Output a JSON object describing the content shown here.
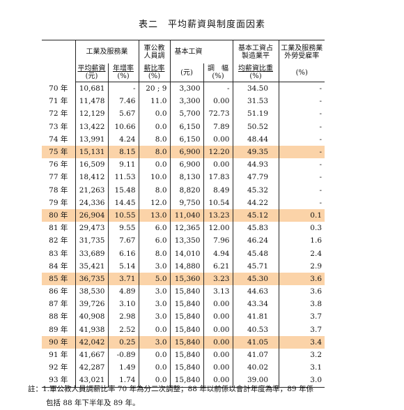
{
  "title": {
    "left": "表二",
    "right": "平均薪資與制度面因素"
  },
  "header": {
    "group_industry": "工業及服務業",
    "avg_wage": "平均薪資",
    "avg_wage_unit": "(元)",
    "growth": "年增率",
    "growth_unit": "(%)",
    "civil_line1": "軍公教",
    "civil_line2": "人員調",
    "civil_line3": "薪比率",
    "civil_unit": "(%)",
    "group_basic": "基本工資",
    "basic_unit": "(元)",
    "adjust": "調　幅",
    "adjust_unit": "(%)",
    "ratio_line1": "基本工資占",
    "ratio_line2": "製造業平",
    "ratio_line3": "均薪資比重",
    "ratio_unit": "(%)",
    "foreign_line1": "工業及服務業",
    "foreign_line2": "外勞受雇率",
    "foreign_unit": "(%)"
  },
  "rows": [
    {
      "year": "70 年",
      "avg": "10,681",
      "growth": "-",
      "civil": "20 ; 9",
      "basic": "3,300",
      "adj": "-",
      "ratio": "34.50",
      "foreign": "-",
      "hl": false
    },
    {
      "year": "71 年",
      "avg": "11,478",
      "growth": "7.46",
      "civil": "11.0",
      "basic": "3,300",
      "adj": "0.00",
      "ratio": "31.53",
      "foreign": "-",
      "hl": false
    },
    {
      "year": "72 年",
      "avg": "12,129",
      "growth": "5.67",
      "civil": "0.0",
      "basic": "5,700",
      "adj": "72.73",
      "ratio": "51.19",
      "foreign": "-",
      "hl": false
    },
    {
      "year": "73 年",
      "avg": "13,422",
      "growth": "10.66",
      "civil": "0.0",
      "basic": "6,150",
      "adj": "7.89",
      "ratio": "50.52",
      "foreign": "-",
      "hl": false
    },
    {
      "year": "74 年",
      "avg": "13,991",
      "growth": "4.24",
      "civil": "8.0",
      "basic": "6,150",
      "adj": "0.00",
      "ratio": "48.44",
      "foreign": "-",
      "hl": false
    },
    {
      "year": "75 年",
      "avg": "15,131",
      "growth": "8.15",
      "civil": "8.0",
      "basic": "6,900",
      "adj": "12.20",
      "ratio": "49.35",
      "foreign": "-",
      "hl": true
    },
    {
      "year": "76 年",
      "avg": "16,509",
      "growth": "9.11",
      "civil": "0.0",
      "basic": "6,900",
      "adj": "0.00",
      "ratio": "44.93",
      "foreign": "-",
      "hl": false
    },
    {
      "year": "77 年",
      "avg": "18,412",
      "growth": "11.53",
      "civil": "10.0",
      "basic": "8,130",
      "adj": "17.83",
      "ratio": "47.79",
      "foreign": "-",
      "hl": false
    },
    {
      "year": "78 年",
      "avg": "21,263",
      "growth": "15.48",
      "civil": "8.0",
      "basic": "8,820",
      "adj": "8.49",
      "ratio": "45.32",
      "foreign": "-",
      "hl": false
    },
    {
      "year": "79 年",
      "avg": "24,336",
      "growth": "14.45",
      "civil": "12.0",
      "basic": "9,750",
      "adj": "10.54",
      "ratio": "44.22",
      "foreign": "-",
      "hl": false
    },
    {
      "year": "80 年",
      "avg": "26,904",
      "growth": "10.55",
      "civil": "13.0",
      "basic": "11,040",
      "adj": "13.23",
      "ratio": "45.12",
      "foreign": "0.1",
      "hl": true
    },
    {
      "year": "81 年",
      "avg": "29,473",
      "growth": "9.55",
      "civil": "6.0",
      "basic": "12,365",
      "adj": "12.00",
      "ratio": "45.83",
      "foreign": "0.3",
      "hl": false
    },
    {
      "year": "82 年",
      "avg": "31,735",
      "growth": "7.67",
      "civil": "6.0",
      "basic": "13,350",
      "adj": "7.96",
      "ratio": "46.24",
      "foreign": "1.6",
      "hl": false
    },
    {
      "year": "83 年",
      "avg": "33,689",
      "growth": "6.16",
      "civil": "8.0",
      "basic": "14,010",
      "adj": "4.94",
      "ratio": "45.48",
      "foreign": "2.4",
      "hl": false
    },
    {
      "year": "84 年",
      "avg": "35,421",
      "growth": "5.14",
      "civil": "3.0",
      "basic": "14,880",
      "adj": "6.21",
      "ratio": "45.71",
      "foreign": "2.9",
      "hl": false
    },
    {
      "year": "85 年",
      "avg": "36,735",
      "growth": "3.71",
      "civil": "5.0",
      "basic": "15,360",
      "adj": "3.23",
      "ratio": "45.30",
      "foreign": "3.6",
      "hl": true
    },
    {
      "year": "86 年",
      "avg": "38,530",
      "growth": "4.89",
      "civil": "3.0",
      "basic": "15,840",
      "adj": "3.13",
      "ratio": "44.63",
      "foreign": "3.6",
      "hl": false
    },
    {
      "year": "87 年",
      "avg": "39,726",
      "growth": "3.10",
      "civil": "3.0",
      "basic": "15,840",
      "adj": "0.00",
      "ratio": "43.34",
      "foreign": "3.8",
      "hl": false
    },
    {
      "year": "88 年",
      "avg": "40,908",
      "growth": "2.98",
      "civil": "3.0",
      "basic": "15,840",
      "adj": "0.00",
      "ratio": "41.81",
      "foreign": "3.7",
      "hl": false
    },
    {
      "year": "89 年",
      "avg": "41,938",
      "growth": "2.52",
      "civil": "0.0",
      "basic": "15,840",
      "adj": "0.00",
      "ratio": "40.53",
      "foreign": "3.7",
      "hl": false
    },
    {
      "year": "90 年",
      "avg": "42,042",
      "growth": "0.25",
      "civil": "3.0",
      "basic": "15,840",
      "adj": "0.00",
      "ratio": "41.05",
      "foreign": "3.4",
      "hl": true
    },
    {
      "year": "91 年",
      "avg": "41,667",
      "growth": "-0.89",
      "civil": "0.0",
      "basic": "15,840",
      "adj": "0.00",
      "ratio": "41.07",
      "foreign": "3.2",
      "hl": false
    },
    {
      "year": "92 年",
      "avg": "42,287",
      "growth": "1.49",
      "civil": "0.0",
      "basic": "15,840",
      "adj": "0.00",
      "ratio": "40.02",
      "foreign": "3.1",
      "hl": false
    },
    {
      "year": "93 年",
      "avg": "43,021",
      "growth": "1.74",
      "civil": "0.0",
      "basic": "15,840",
      "adj": "0.00",
      "ratio": "39.00",
      "foreign": "3.0",
      "hl": false
    }
  ],
  "note": {
    "line1": "註：1.軍公教人員調薪比率 70 年為分二次調整；88 年以前係以會計年度為準，89 年係",
    "line2": "包括 88 年下半年及 89 年。"
  },
  "colors": {
    "highlight": "#fbd3a8",
    "rule": "#222222"
  }
}
